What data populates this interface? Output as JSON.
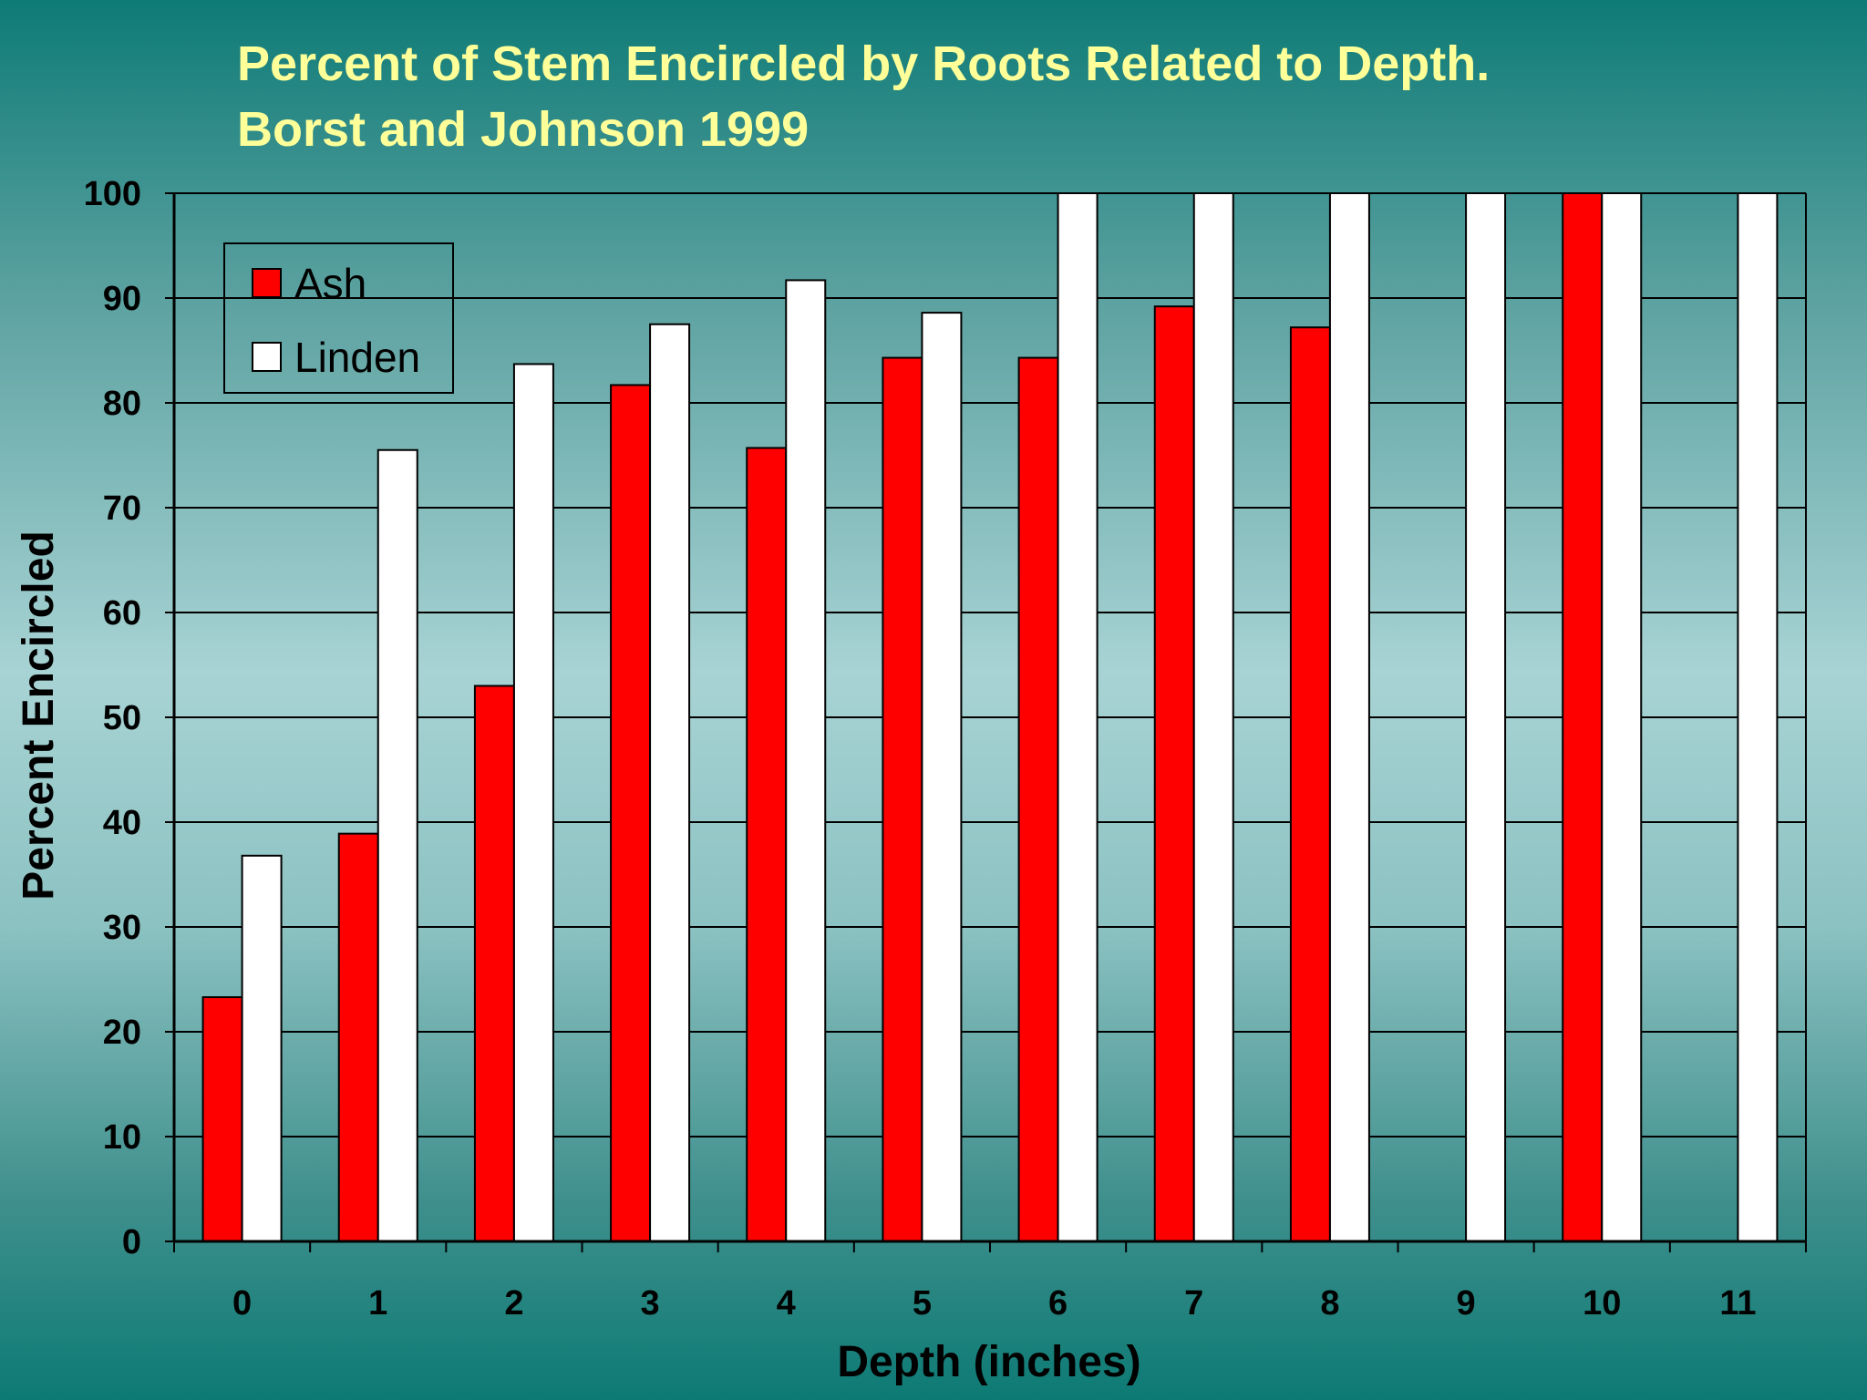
{
  "chart_data": {
    "type": "bar",
    "title": "Percent of Stem Encircled by Roots Related to Depth.",
    "subtitle": "Borst and Johnson 1999",
    "xlabel": "Depth (inches)",
    "ylabel": "Percent Encircled",
    "ylim": [
      0,
      100
    ],
    "yticks": [
      0,
      10,
      20,
      30,
      40,
      50,
      60,
      70,
      80,
      90,
      100
    ],
    "categories": [
      "0",
      "1",
      "2",
      "3",
      "4",
      "5",
      "6",
      "7",
      "8",
      "9",
      "10",
      "11"
    ],
    "grid": true,
    "legend_position": "top-left",
    "series": [
      {
        "name": "Ash",
        "color": "#ff0000",
        "values": [
          23.3,
          38.9,
          53.0,
          81.7,
          75.7,
          84.3,
          84.3,
          89.2,
          87.2,
          0,
          100,
          0
        ]
      },
      {
        "name": "Linden",
        "color": "#ffffff",
        "values": [
          36.8,
          75.5,
          83.7,
          87.5,
          91.7,
          88.6,
          100,
          100,
          100,
          100,
          100,
          100
        ]
      }
    ]
  }
}
